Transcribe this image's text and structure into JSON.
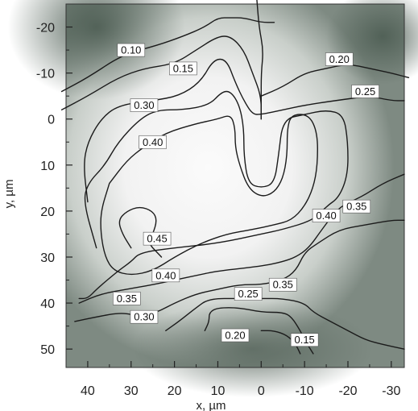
{
  "chart_data": {
    "type": "contour",
    "xlabel": "x, µm",
    "ylabel": "y, µm",
    "x_ticks": [
      "40",
      "30",
      "20",
      "10",
      "0",
      "-10",
      "-20",
      "-30"
    ],
    "y_ticks": [
      "-20",
      "-10",
      "0",
      "10",
      "20",
      "30",
      "40",
      "50"
    ],
    "xlim": [
      45,
      -33
    ],
    "ylim": [
      -25,
      54
    ],
    "x_direction": "reversed",
    "y_direction": "downward",
    "contour_levels": [
      0.1,
      0.15,
      0.2,
      0.25,
      0.3,
      0.35,
      0.4,
      0.45
    ],
    "contour_labels": [
      {
        "text": "0.10",
        "x": 30,
        "y": -15
      },
      {
        "text": "0.15",
        "x": 18,
        "y": -11
      },
      {
        "text": "0.20",
        "x": -18,
        "y": -13
      },
      {
        "text": "0.25",
        "x": -24,
        "y": -6
      },
      {
        "text": "0.30",
        "x": 27,
        "y": -3
      },
      {
        "text": "0.40",
        "x": 25,
        "y": 5
      },
      {
        "text": "0.40",
        "x": -15,
        "y": 21
      },
      {
        "text": "0.35",
        "x": -22,
        "y": 19
      },
      {
        "text": "0.45",
        "x": 24,
        "y": 26
      },
      {
        "text": "0.40",
        "x": 22,
        "y": 34
      },
      {
        "text": "0.35",
        "x": -5,
        "y": 36
      },
      {
        "text": "0.35",
        "x": 31,
        "y": 39
      },
      {
        "text": "0.25",
        "x": 3,
        "y": 38
      },
      {
        "text": "0.30",
        "x": 27,
        "y": 43
      },
      {
        "text": "0.20",
        "x": 6,
        "y": 47
      },
      {
        "text": "0.15",
        "x": -10,
        "y": 48
      }
    ],
    "contours": [
      {
        "level": 0.1,
        "points": [
          [
            46,
            -6
          ],
          [
            40,
            -9
          ],
          [
            32,
            -14
          ],
          [
            24,
            -16
          ],
          [
            18,
            -18
          ],
          [
            13,
            -20
          ],
          [
            10,
            -22
          ],
          [
            7,
            -22
          ],
          [
            4,
            -22
          ],
          [
            0,
            -21
          ],
          [
            -3,
            -21
          ]
        ]
      },
      {
        "level": 0.15,
        "points": [
          [
            46,
            -2
          ],
          [
            40,
            -5
          ],
          [
            33,
            -9
          ],
          [
            27,
            -11
          ],
          [
            20,
            -12
          ],
          [
            15,
            -15
          ],
          [
            10,
            -18
          ],
          [
            7,
            -18
          ],
          [
            4,
            -15
          ],
          [
            2,
            -10
          ],
          [
            0,
            -5
          ],
          [
            0,
            0
          ]
        ]
      },
      {
        "level": 0.2,
        "points": [
          [
            0,
            -5
          ],
          [
            -5,
            -7
          ],
          [
            -10,
            -10
          ],
          [
            -15,
            -11
          ],
          [
            -20,
            -12
          ],
          [
            -25,
            -11
          ],
          [
            -30,
            -10
          ],
          [
            -34,
            -9
          ]
        ]
      },
      {
        "level": 0.3,
        "points": [
          [
            40,
            18
          ],
          [
            41,
            10
          ],
          [
            40,
            5
          ],
          [
            37,
            0
          ],
          [
            33,
            -3
          ],
          [
            25,
            -4
          ],
          [
            19,
            -5
          ],
          [
            14,
            -8
          ],
          [
            11,
            -13
          ],
          [
            8,
            -13
          ],
          [
            6,
            -8
          ],
          [
            4,
            -4
          ],
          [
            2,
            -1
          ],
          [
            0,
            -1
          ],
          [
            -5,
            -2
          ],
          [
            -10,
            -3
          ],
          [
            -17,
            -4
          ],
          [
            -25,
            -5
          ],
          [
            -30,
            -4
          ],
          [
            -33,
            -4
          ]
        ]
      },
      {
        "level": 0.35,
        "points": [
          [
            38,
            28
          ],
          [
            41,
            18
          ],
          [
            40,
            14
          ],
          [
            36,
            10
          ],
          [
            33,
            5
          ],
          [
            28,
            0
          ],
          [
            24,
            -2
          ],
          [
            18,
            -2
          ],
          [
            12,
            -3
          ],
          [
            9,
            -6
          ],
          [
            7,
            -6
          ],
          [
            5,
            -3
          ],
          [
            4,
            2
          ],
          [
            4,
            8
          ],
          [
            3,
            14
          ],
          [
            0,
            15
          ],
          [
            -3,
            14
          ],
          [
            -4,
            8
          ],
          [
            -5,
            0
          ],
          [
            -10,
            -1
          ],
          [
            -15,
            -2
          ],
          [
            -19,
            -1
          ],
          [
            -20,
            5
          ],
          [
            -20,
            12
          ],
          [
            -18,
            17
          ],
          [
            -15,
            19
          ],
          [
            -12,
            22
          ],
          [
            -5,
            24
          ],
          [
            0,
            25
          ],
          [
            10,
            27
          ],
          [
            20,
            28
          ],
          [
            28,
            29
          ],
          [
            30,
            31
          ],
          [
            33,
            33
          ],
          [
            38,
            37
          ],
          [
            40,
            39
          ],
          [
            42,
            39
          ]
        ]
      },
      {
        "level": 0.4,
        "points": [
          [
            35,
            14
          ],
          [
            31,
            9
          ],
          [
            27,
            6
          ],
          [
            22,
            3
          ],
          [
            15,
            1
          ],
          [
            10,
            0
          ],
          [
            7,
            -1
          ],
          [
            6,
            2
          ],
          [
            6,
            6
          ],
          [
            5,
            10
          ],
          [
            3,
            15
          ],
          [
            0,
            17
          ],
          [
            -3,
            16
          ],
          [
            -5,
            13
          ],
          [
            -6,
            8
          ],
          [
            -6,
            2
          ],
          [
            -7,
            -1
          ],
          [
            -11,
            -1
          ],
          [
            -13,
            3
          ],
          [
            -13,
            10
          ],
          [
            -12,
            15
          ],
          [
            -10,
            19
          ],
          [
            -7,
            22
          ],
          [
            -3,
            23
          ],
          [
            2,
            24
          ],
          [
            8,
            25
          ],
          [
            14,
            27
          ],
          [
            20,
            30
          ],
          [
            25,
            33
          ],
          [
            30,
            34
          ],
          [
            34,
            33
          ],
          [
            36,
            30
          ],
          [
            37,
            25
          ],
          [
            37,
            20
          ],
          [
            35,
            14
          ]
        ]
      },
      {
        "level": 0.45,
        "points": [
          [
            30,
            28
          ],
          [
            32,
            25
          ],
          [
            33,
            22
          ],
          [
            31,
            20
          ],
          [
            28,
            19
          ],
          [
            25,
            20
          ],
          [
            24,
            22
          ],
          [
            25,
            25
          ],
          [
            26,
            27
          ],
          [
            24,
            29
          ],
          [
            23,
            30
          ]
        ]
      },
      {
        "level": 0.35,
        "points": [
          [
            42,
            40
          ],
          [
            37,
            38
          ],
          [
            31,
            37
          ],
          [
            25,
            36
          ],
          [
            20,
            35
          ],
          [
            15,
            34
          ],
          [
            10,
            33
          ],
          [
            0,
            32
          ],
          [
            -5,
            31
          ],
          [
            -8,
            30
          ],
          [
            -11,
            28
          ],
          [
            -14,
            24
          ],
          [
            -18,
            19
          ],
          [
            -23,
            17
          ],
          [
            -28,
            14
          ],
          [
            -33,
            12
          ]
        ]
      },
      {
        "level": 0.3,
        "points": [
          [
            43,
            44
          ],
          [
            38,
            43
          ],
          [
            32,
            42
          ],
          [
            28,
            43
          ],
          [
            24,
            42
          ],
          [
            20,
            40
          ],
          [
            15,
            38
          ],
          [
            10,
            37
          ],
          [
            5,
            36
          ],
          [
            0,
            36
          ],
          [
            -5,
            35
          ],
          [
            -8,
            33
          ],
          [
            -10,
            29
          ],
          [
            -13,
            27
          ],
          [
            -18,
            24
          ],
          [
            -24,
            23
          ],
          [
            -30,
            22
          ],
          [
            -33,
            22
          ]
        ]
      },
      {
        "level": 0.25,
        "points": [
          [
            22,
            46
          ],
          [
            19,
            44
          ],
          [
            15,
            41
          ],
          [
            12,
            39
          ],
          [
            5,
            39
          ],
          [
            0,
            39
          ],
          [
            -5,
            39
          ],
          [
            -10,
            40
          ],
          [
            -12,
            42
          ],
          [
            -16,
            44
          ],
          [
            -20,
            46
          ],
          [
            -24,
            48
          ],
          [
            -28,
            49
          ],
          [
            -33,
            50
          ]
        ]
      },
      {
        "level": 0.2,
        "points": [
          [
            13,
            46
          ],
          [
            12,
            44
          ],
          [
            12,
            42
          ],
          [
            10,
            41
          ],
          [
            5,
            41
          ],
          [
            0,
            42
          ],
          [
            -5,
            42
          ],
          [
            -7,
            43
          ],
          [
            -9,
            46
          ],
          [
            -10,
            48
          ],
          [
            -12,
            51
          ]
        ]
      },
      {
        "level": 0.15,
        "points": [
          [
            0,
            46
          ],
          [
            -3,
            46
          ],
          [
            -6,
            47
          ],
          [
            -8,
            49
          ],
          [
            -9,
            51
          ]
        ]
      },
      {
        "level": 0.1,
        "points": [
          [
            1,
            -26
          ],
          [
            0.5,
            -20
          ],
          [
            -0.5,
            -15
          ],
          [
            0,
            -10
          ],
          [
            0,
            -4
          ],
          [
            0,
            0
          ]
        ]
      }
    ]
  }
}
